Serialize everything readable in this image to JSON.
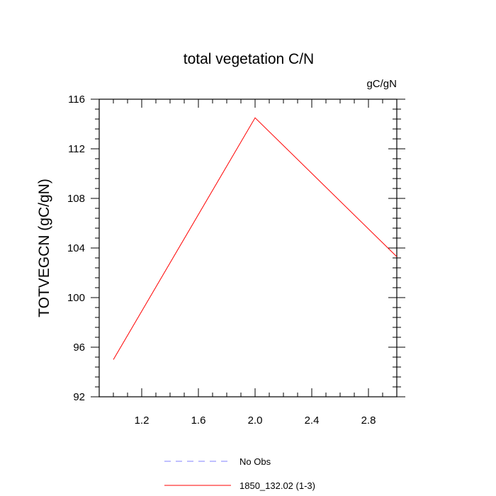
{
  "chart_data": {
    "type": "line",
    "title": "total vegetation C/N",
    "units": "gC/gN",
    "ylabel": "TOTVEGCN  (gC/gN)",
    "xlabel": "",
    "xlim": [
      0.9,
      3.0
    ],
    "ylim": [
      92,
      116
    ],
    "x_ticks": [
      1.2,
      1.6,
      2.0,
      2.4,
      2.8
    ],
    "x_tick_labels": [
      "1.2",
      "1.6",
      "2.0",
      "2.4",
      "2.8"
    ],
    "y_ticks": [
      92,
      96,
      100,
      104,
      108,
      112,
      116
    ],
    "y_tick_labels": [
      "92",
      "96",
      "100",
      "104",
      "108",
      "112",
      "116"
    ],
    "grid": false,
    "legend_position": "bottom-center",
    "legend": [
      {
        "name": "No Obs",
        "color": "#8080ff",
        "dash": true
      },
      {
        "name": "1850_132.02 (1-3)",
        "color": "#ff0000",
        "dash": false
      }
    ],
    "series": [
      {
        "name": "1850_132.02 (1-3)",
        "color": "#ff0000",
        "x": [
          1.0,
          2.0,
          3.0
        ],
        "values": [
          95.0,
          114.5,
          103.3
        ]
      }
    ]
  }
}
